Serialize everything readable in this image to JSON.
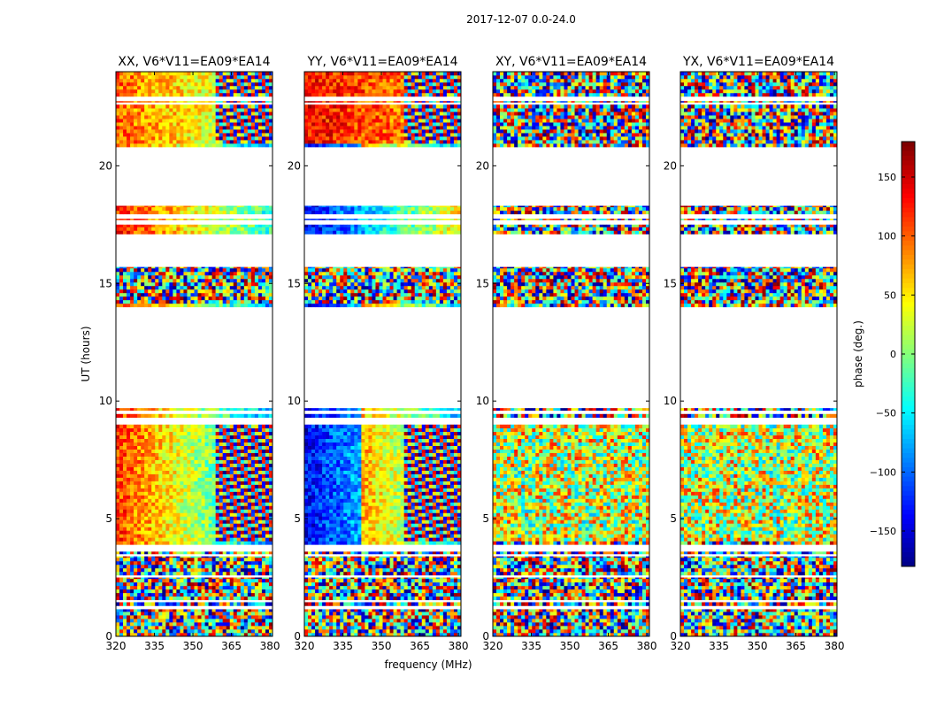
{
  "chart_data": {
    "type": "heatmap",
    "title": "2017-12-07 0.0-24.0",
    "xlabel": "frequency (MHz)",
    "ylabel": "UT (hours)",
    "xlim": [
      320,
      381
    ],
    "ylim": [
      0,
      24
    ],
    "x_ticks": [
      320,
      335,
      350,
      365,
      380
    ],
    "y_ticks": [
      0,
      5,
      10,
      15,
      20
    ],
    "colorbar": {
      "label": "phase (deg.)",
      "range": [
        -180,
        180
      ],
      "ticks": [
        150,
        100,
        50,
        0,
        -50,
        -100,
        -150
      ],
      "tick_labels": [
        "150",
        "100",
        "50",
        "0",
        "−50",
        "−100",
        "−150"
      ],
      "colormap": "jet",
      "colors": [
        "#00007f",
        "#0000ff",
        "#007fff",
        "#00ffff",
        "#7fff7f",
        "#ffff00",
        "#ff7f00",
        "#ff0000",
        "#7f0000"
      ]
    },
    "panels": [
      {
        "title": "XX, V6*V11=EA09*EA14",
        "polarization": "XX",
        "coherent": true
      },
      {
        "title": "YY, V6*V11=EA09*EA14",
        "polarization": "YY",
        "coherent": true
      },
      {
        "title": "XY, V6*V11=EA09*EA14",
        "polarization": "XY",
        "coherent": false
      },
      {
        "title": "YX, V6*V11=EA09*EA14",
        "polarization": "YX",
        "coherent": false
      }
    ],
    "data_segments_ut_hours": [
      [
        0.0,
        1.15
      ],
      [
        1.3,
        1.45
      ],
      [
        1.55,
        2.5
      ],
      [
        2.6,
        3.4
      ],
      [
        3.5,
        3.6
      ],
      [
        3.9,
        9.0
      ],
      [
        9.3,
        9.45
      ],
      [
        9.6,
        9.7
      ],
      [
        14.0,
        15.7
      ],
      [
        17.1,
        17.5
      ],
      [
        17.7,
        17.75
      ],
      [
        17.95,
        18.3
      ],
      [
        20.8,
        22.6
      ],
      [
        22.7,
        22.75
      ],
      [
        22.95,
        24.0
      ]
    ],
    "grid": false
  }
}
